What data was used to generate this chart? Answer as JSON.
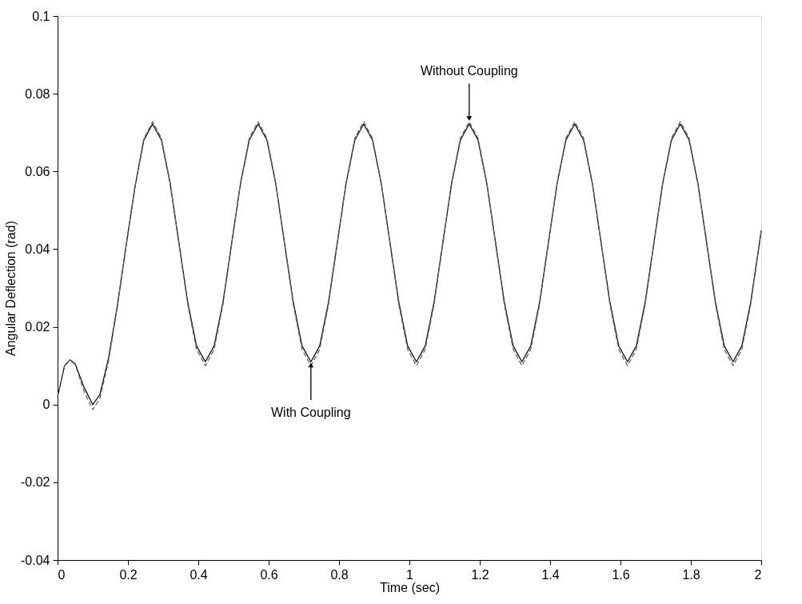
{
  "chart_data": {
    "type": "line",
    "xlabel": "Time (sec)",
    "ylabel": "Angular Deflection (rad)",
    "xlim": [
      0,
      2
    ],
    "ylim": [
      -0.04,
      0.1
    ],
    "xticks": [
      0,
      0.2,
      0.4,
      0.6,
      0.8,
      1,
      1.2,
      1.4,
      1.6,
      1.8,
      2
    ],
    "yticks": [
      -0.04,
      -0.02,
      0,
      0.02,
      0.04,
      0.06,
      0.08,
      0.1
    ],
    "grid": false,
    "x": [
      0,
      0.02,
      0.035,
      0.05,
      0.075,
      0.1,
      0.12,
      0.145,
      0.17,
      0.195,
      0.22,
      0.245,
      0.27,
      0.295,
      0.32,
      0.345,
      0.37,
      0.395,
      0.42,
      0.445,
      0.47,
      0.495,
      0.52,
      0.545,
      0.57,
      0.595,
      0.62,
      0.645,
      0.67,
      0.695,
      0.72,
      0.745,
      0.77,
      0.795,
      0.82,
      0.845,
      0.87,
      0.895,
      0.92,
      0.945,
      0.97,
      0.995,
      1.02,
      1.045,
      1.07,
      1.095,
      1.12,
      1.145,
      1.17,
      1.195,
      1.22,
      1.245,
      1.27,
      1.295,
      1.32,
      1.345,
      1.37,
      1.395,
      1.42,
      1.445,
      1.47,
      1.495,
      1.52,
      1.545,
      1.57,
      1.595,
      1.62,
      1.645,
      1.67,
      1.695,
      1.72,
      1.745,
      1.77,
      1.795,
      1.82,
      1.845,
      1.87,
      1.895,
      1.92,
      1.945,
      1.97,
      1.995,
      2
    ],
    "series": [
      {
        "color": "#111111",
        "line_style": "solid",
        "values": [
          0.002,
          0.01,
          0.0115,
          0.0105,
          0.0045,
          0.0,
          0.0025,
          0.012,
          0.0255,
          0.041,
          0.056,
          0.068,
          0.0722,
          0.0681,
          0.0569,
          0.0416,
          0.0263,
          0.0151,
          0.011,
          0.0151,
          0.0263,
          0.0416,
          0.0569,
          0.0681,
          0.0722,
          0.0681,
          0.0569,
          0.0416,
          0.0263,
          0.0151,
          0.011,
          0.0151,
          0.0263,
          0.0416,
          0.0569,
          0.0681,
          0.0722,
          0.0681,
          0.0569,
          0.0416,
          0.0263,
          0.0151,
          0.011,
          0.0151,
          0.0263,
          0.0416,
          0.0569,
          0.0681,
          0.0722,
          0.0681,
          0.0569,
          0.0416,
          0.0263,
          0.0151,
          0.011,
          0.0151,
          0.0263,
          0.0416,
          0.0569,
          0.0681,
          0.0722,
          0.0681,
          0.0569,
          0.0416,
          0.0263,
          0.0151,
          0.011,
          0.0151,
          0.0263,
          0.0416,
          0.0569,
          0.0681,
          0.0722,
          0.0681,
          0.0569,
          0.0416,
          0.0263,
          0.0151,
          0.011,
          0.0151,
          0.0263,
          0.0416,
          0.0448
        ]
      },
      {
        "color": "#666666",
        "line_style": "dashed",
        "values": [
          0.002,
          0.01,
          0.0115,
          0.0103,
          0.0035,
          -0.0013,
          0.0015,
          0.0112,
          0.0252,
          0.041,
          0.0562,
          0.0684,
          0.0728,
          0.0686,
          0.0571,
          0.0414,
          0.0257,
          0.0142,
          0.01,
          0.0142,
          0.0257,
          0.0414,
          0.0571,
          0.0686,
          0.0728,
          0.0686,
          0.0571,
          0.0414,
          0.0257,
          0.0142,
          0.01,
          0.0142,
          0.0257,
          0.0414,
          0.0571,
          0.0686,
          0.0728,
          0.0686,
          0.0571,
          0.0414,
          0.0257,
          0.0142,
          0.01,
          0.0142,
          0.0257,
          0.0414,
          0.0571,
          0.0686,
          0.0728,
          0.0686,
          0.0571,
          0.0414,
          0.0257,
          0.0142,
          0.01,
          0.0142,
          0.0257,
          0.0414,
          0.0571,
          0.0686,
          0.0728,
          0.0686,
          0.0571,
          0.0414,
          0.0257,
          0.0142,
          0.01,
          0.0142,
          0.0257,
          0.0414,
          0.0571,
          0.0686,
          0.0728,
          0.0686,
          0.0571,
          0.0414,
          0.0257,
          0.0142,
          0.01,
          0.0142,
          0.0257,
          0.0414,
          0.0447
        ]
      }
    ],
    "annotations": [
      {
        "text": "Without Coupling",
        "x": 1.17,
        "y": 0.0728
      },
      {
        "text": "With Coupling",
        "x": 0.72,
        "y": 0.011
      }
    ]
  }
}
